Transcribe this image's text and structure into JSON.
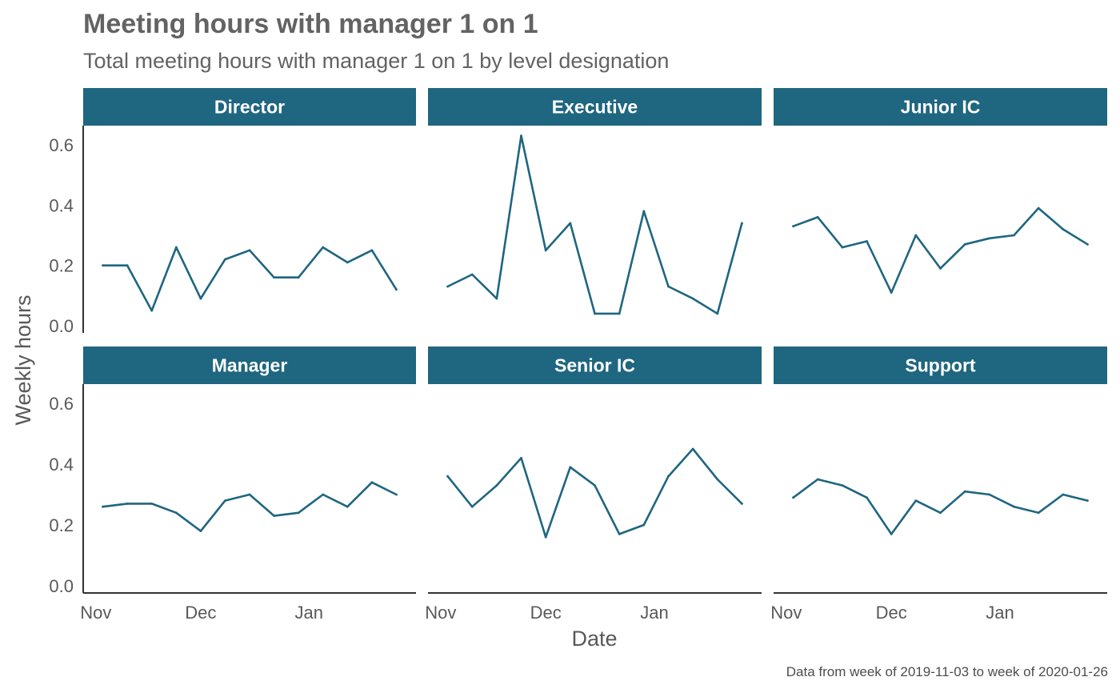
{
  "chart_data": {
    "type": "line",
    "title": "Meeting hours with manager 1 on 1",
    "subtitle": "Total meeting hours with manager 1 on 1 by level designation",
    "xlabel": "Date",
    "ylabel": "Weekly hours",
    "caption": "Data from week of 2019-11-03 to week of 2020-01-26",
    "x": [
      "2019-11-03",
      "2019-11-10",
      "2019-11-17",
      "2019-11-24",
      "2019-12-01",
      "2019-12-08",
      "2019-12-15",
      "2019-12-22",
      "2019-12-29",
      "2020-01-05",
      "2020-01-12",
      "2020-01-19",
      "2020-01-26"
    ],
    "x_ticks": [
      {
        "label": "Nov",
        "date": "2019-11-01"
      },
      {
        "label": "Dec",
        "date": "2019-12-01"
      },
      {
        "label": "Jan",
        "date": "2020-01-01"
      }
    ],
    "y_ticks": [
      {
        "label": "0.0",
        "value": 0.0
      },
      {
        "label": "0.2",
        "value": 0.2
      },
      {
        "label": "0.4",
        "value": 0.4
      },
      {
        "label": "0.6",
        "value": 0.6
      }
    ],
    "ylim": [
      0,
      0.65
    ],
    "facet_grid": "2 rows x 3 columns",
    "line_color": "#1f6680",
    "strip_color": "#1f6680",
    "facets": [
      {
        "name": "Director",
        "values": [
          0.2,
          0.2,
          0.05,
          0.26,
          0.09,
          0.22,
          0.25,
          0.16,
          0.16,
          0.26,
          0.21,
          0.25,
          0.12
        ]
      },
      {
        "name": "Executive",
        "values": [
          0.13,
          0.17,
          0.09,
          0.63,
          0.25,
          0.34,
          0.04,
          0.04,
          0.38,
          0.13,
          0.09,
          0.04,
          0.34
        ]
      },
      {
        "name": "Junior IC",
        "values": [
          0.33,
          0.36,
          0.26,
          0.28,
          0.11,
          0.3,
          0.19,
          0.27,
          0.29,
          0.3,
          0.39,
          0.32,
          0.27
        ]
      },
      {
        "name": "Manager",
        "values": [
          0.26,
          0.27,
          0.27,
          0.24,
          0.18,
          0.28,
          0.3,
          0.23,
          0.24,
          0.3,
          0.26,
          0.34,
          0.3
        ]
      },
      {
        "name": "Senior IC",
        "values": [
          0.36,
          0.26,
          0.33,
          0.42,
          0.16,
          0.39,
          0.33,
          0.17,
          0.2,
          0.36,
          0.45,
          0.35,
          0.27
        ]
      },
      {
        "name": "Support",
        "values": [
          0.29,
          0.35,
          0.33,
          0.29,
          0.17,
          0.28,
          0.24,
          0.31,
          0.3,
          0.26,
          0.24,
          0.3,
          0.28
        ]
      }
    ]
  }
}
